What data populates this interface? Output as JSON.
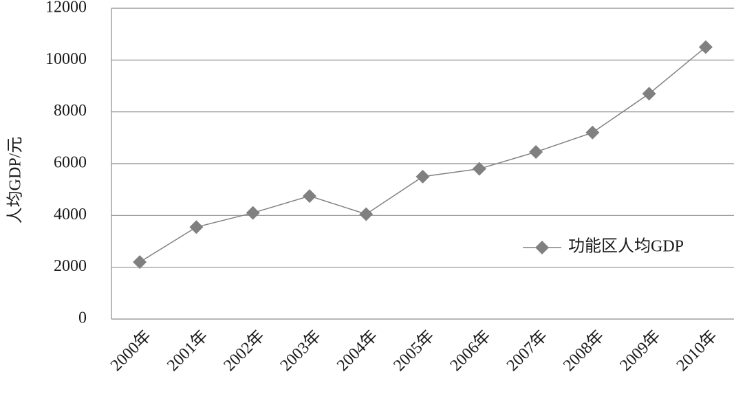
{
  "chart_data": {
    "type": "line",
    "y_label": "人均GDP/元",
    "categories": [
      "2000年",
      "2001年",
      "2002年",
      "2003年",
      "2004年",
      "2005年",
      "2006年",
      "2007年",
      "2008年",
      "2009年",
      "2010年"
    ],
    "series": [
      {
        "name": "功能区人均GDP",
        "color": "#808080",
        "values": [
          2200,
          3550,
          4100,
          4750,
          4050,
          5500,
          5800,
          6450,
          7200,
          8700,
          10500
        ]
      }
    ],
    "ylim": [
      0,
      12000
    ],
    "yticks": [
      0,
      2000,
      4000,
      6000,
      8000,
      10000,
      12000
    ],
    "grid": true,
    "legend": "right"
  }
}
